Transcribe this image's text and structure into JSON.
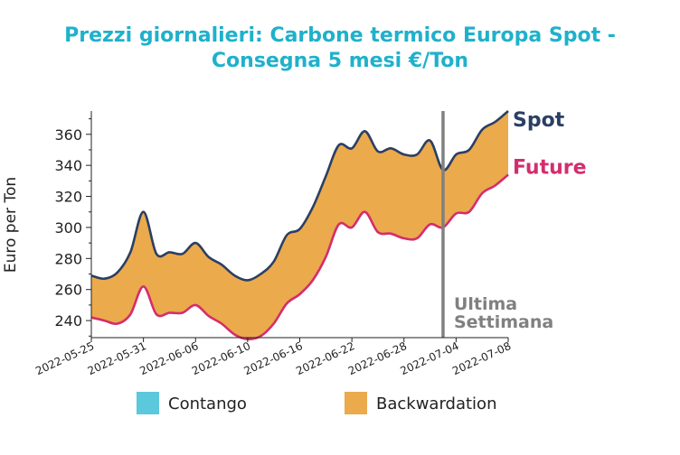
{
  "chart_data": {
    "type": "area",
    "title_lines": [
      "Prezzi giornalieri: Carbone termico Europa Spot -",
      "Consegna 5 mesi €/Ton"
    ],
    "xlabel": "",
    "ylabel": "Euro per Ton",
    "x_ticks": [
      "2022-05-25",
      "2022-05-31",
      "2022-06-06",
      "2022-06-10",
      "2022-06-16",
      "2022-06-22",
      "2022-06-28",
      "2022-07-04",
      "2022-07-08"
    ],
    "y_ticks": [
      240,
      260,
      280,
      300,
      320,
      340,
      360
    ],
    "ylim": [
      229,
      375
    ],
    "grid": false,
    "series": [
      {
        "name": "Spot",
        "color": "#2b3f63",
        "values": [
          269,
          267,
          271,
          284,
          310,
          283,
          284,
          283,
          290,
          281,
          276,
          269,
          266,
          270,
          278,
          295,
          299,
          313,
          333,
          353,
          351,
          362,
          349,
          351,
          347,
          347,
          356,
          337,
          347,
          350,
          363,
          368,
          375
        ]
      },
      {
        "name": "Future",
        "color": "#d42d6d",
        "values": [
          242,
          240,
          238,
          244,
          262,
          244,
          245,
          245,
          250,
          243,
          238,
          231,
          228,
          230,
          238,
          251,
          257,
          266,
          281,
          302,
          300,
          310,
          297,
          296,
          293,
          293,
          302,
          300,
          309,
          310,
          322,
          327,
          334
        ]
      }
    ],
    "annotation": {
      "lines": [
        "Ultima",
        "Settimana"
      ],
      "at_index": 27
    },
    "legend": [
      {
        "label": "Contango",
        "color": "#5bc8dc"
      },
      {
        "label": "Backwardation",
        "color": "#ebaa4b"
      }
    ],
    "legend_position": "bottom",
    "fill_color": "#ebaa4b",
    "vline_color": "#808080"
  }
}
